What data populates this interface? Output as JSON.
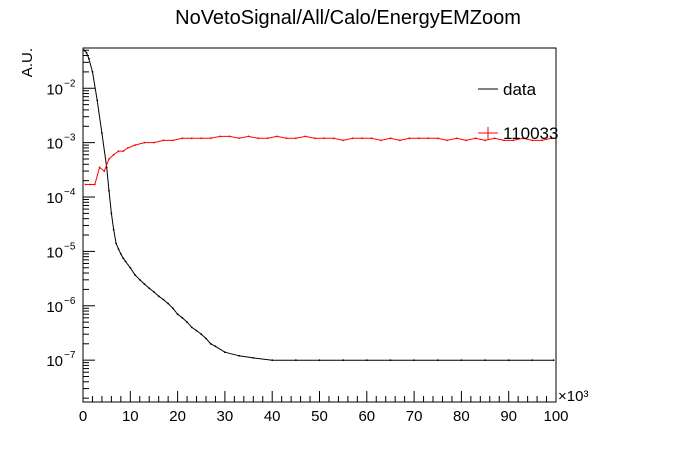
{
  "chart_data": {
    "type": "line",
    "title": "NoVetoSignal/All/Calo/EnergyEMZoom",
    "xlabel": "",
    "ylabel": "A.U.",
    "x_multiplier_label": "×10³",
    "xlim": [
      0,
      100
    ],
    "ylim": [
      1.7e-08,
      0.055
    ],
    "yscale": "log",
    "x_ticks": [
      0,
      10,
      20,
      30,
      40,
      50,
      60,
      70,
      80,
      90,
      100
    ],
    "y_ticks": [
      {
        "value": 1e-07,
        "base": "10",
        "exp": "−7"
      },
      {
        "value": 1e-06,
        "base": "10",
        "exp": "−6"
      },
      {
        "value": 1e-05,
        "base": "10",
        "exp": "−5"
      },
      {
        "value": 0.0001,
        "base": "10",
        "exp": "−4"
      },
      {
        "value": 0.001,
        "base": "10",
        "exp": "−3"
      },
      {
        "value": 0.01,
        "base": "10",
        "exp": "−2"
      }
    ],
    "grid": false,
    "legend_position": "top-right",
    "series": [
      {
        "name": "data",
        "color": "#000000",
        "x": [
          0.25,
          0.75,
          1.25,
          2,
          3,
          4,
          5,
          5.5,
          6,
          6.5,
          7,
          7.5,
          8,
          8.5,
          9,
          10,
          11,
          12,
          13,
          14,
          15,
          16,
          17,
          18,
          19,
          20,
          21,
          22,
          23,
          24,
          25,
          26,
          27,
          28,
          30,
          33,
          36,
          40,
          45,
          50,
          55,
          60,
          65,
          70,
          75,
          80,
          85,
          90,
          95,
          99.5
        ],
        "y": [
          0.05,
          0.045,
          0.035,
          0.02,
          0.006,
          0.0015,
          0.00035,
          0.00013,
          5e-05,
          2.5e-05,
          1.4e-05,
          1.1e-05,
          9e-06,
          7.5e-06,
          6.5e-06,
          5e-06,
          3.7e-06,
          3e-06,
          2.5e-06,
          2.1e-06,
          1.8e-06,
          1.5e-06,
          1.3e-06,
          1.1e-06,
          9e-07,
          7e-07,
          6e-07,
          5e-07,
          4e-07,
          3.5e-07,
          3e-07,
          2.5e-07,
          2e-07,
          1.8e-07,
          1.4e-07,
          1.2e-07,
          1.1e-07,
          1e-07,
          1e-07,
          1e-07,
          1e-07,
          1e-07,
          1e-07,
          1e-07,
          1e-07,
          1e-07,
          1e-07,
          1e-07,
          1e-07,
          1e-07
        ]
      },
      {
        "name": "110033",
        "color": "#ff0000",
        "x": [
          0.5,
          1.5,
          2.5,
          3.5,
          4.5,
          5.5,
          6.5,
          7.5,
          8.5,
          9.5,
          11,
          13,
          15,
          17,
          19,
          21,
          23,
          25,
          27,
          29,
          31,
          33,
          35,
          37,
          39,
          41,
          43,
          45,
          47,
          49,
          51,
          53,
          55,
          57,
          59,
          61,
          63,
          65,
          67,
          69,
          71,
          73,
          75,
          77,
          79,
          81,
          83,
          85,
          87,
          89,
          91,
          93,
          95,
          97,
          99
        ],
        "y": [
          0.00017,
          0.00017,
          0.00017,
          0.00035,
          0.0003,
          0.0005,
          0.0006,
          0.0007,
          0.0007,
          0.0008,
          0.0009,
          0.001,
          0.001,
          0.0011,
          0.0011,
          0.0012,
          0.0012,
          0.0012,
          0.0012,
          0.0013,
          0.0013,
          0.0012,
          0.0013,
          0.0012,
          0.0012,
          0.0013,
          0.0012,
          0.0012,
          0.0013,
          0.0012,
          0.0012,
          0.0012,
          0.0011,
          0.0012,
          0.0012,
          0.0012,
          0.0011,
          0.0012,
          0.0011,
          0.0012,
          0.0012,
          0.0012,
          0.0012,
          0.0011,
          0.0012,
          0.0011,
          0.0012,
          0.0011,
          0.0012,
          0.0011,
          0.0011,
          0.0012,
          0.0011,
          0.0011,
          0.0012
        ]
      }
    ]
  }
}
